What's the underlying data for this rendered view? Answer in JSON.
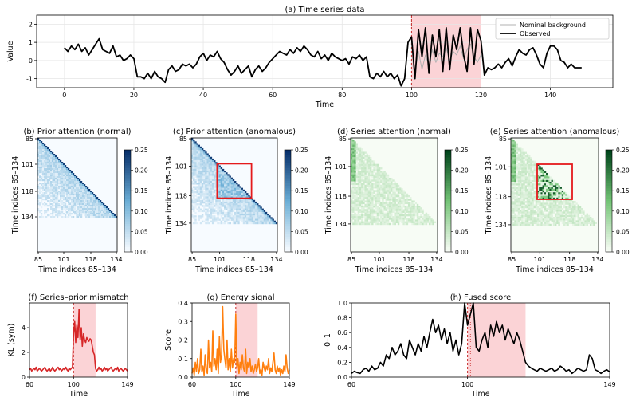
{
  "chart_data": [
    {
      "id": "a",
      "type": "line",
      "title": "(a) Time series data",
      "xlabel": "Time",
      "ylabel": "Value",
      "xlim": [
        -8,
        158
      ],
      "ylim": [
        -1.5,
        2.5
      ],
      "xticks": [
        0,
        20,
        40,
        60,
        80,
        100,
        120,
        140
      ],
      "yticks": [
        -1,
        0,
        1,
        2
      ],
      "grid": true,
      "legend": "top-right",
      "shaded_region": [
        100,
        120
      ],
      "vline": 100,
      "series": [
        {
          "name": "Nominal background",
          "color": "#b0b0b0",
          "x_start": 100,
          "values": [
            1.0,
            -0.6,
            0.5,
            -0.5,
            0.3,
            -0.3,
            0.6,
            -0.1,
            0.4,
            0.2,
            0.7,
            0.0,
            0.5,
            0.3,
            0.8,
            0.1,
            0.6,
            0.9,
            0.2,
            -0.1,
            0.3
          ]
        },
        {
          "name": "Observed",
          "color": "#000000",
          "x_start": 0,
          "values": [
            0.7,
            0.5,
            0.8,
            0.6,
            0.9,
            0.5,
            0.7,
            0.3,
            0.6,
            0.9,
            1.2,
            0.6,
            0.5,
            0.4,
            0.8,
            0.2,
            0.3,
            0.0,
            0.1,
            0.3,
            0.1,
            -0.9,
            -0.9,
            -1.0,
            -0.7,
            -1.0,
            -0.6,
            -0.9,
            -1.0,
            -1.2,
            -0.5,
            -0.3,
            -0.6,
            -0.5,
            -0.2,
            -0.3,
            -0.2,
            -0.4,
            -0.2,
            0.2,
            0.4,
            0.0,
            0.3,
            0.2,
            0.5,
            0.1,
            -0.1,
            -0.5,
            -0.8,
            -0.6,
            -0.3,
            -0.7,
            -0.5,
            -0.3,
            -0.9,
            -0.5,
            -0.3,
            -0.6,
            -0.4,
            -0.1,
            0.1,
            0.3,
            0.5,
            0.4,
            0.3,
            0.6,
            0.4,
            0.7,
            0.5,
            0.8,
            0.6,
            0.3,
            0.2,
            0.5,
            0.1,
            0.3,
            0.0,
            0.4,
            0.2,
            0.1,
            0.0,
            0.1,
            -0.2,
            0.2,
            0.1,
            0.3,
            0.0,
            0.2,
            -0.9,
            -1.0,
            -0.7,
            -0.9,
            -0.6,
            -0.9,
            -0.7,
            -1.0,
            -0.8,
            -1.4,
            -1.0,
            1.0,
            1.3,
            -1.0,
            1.7,
            0.2,
            1.8,
            -0.7,
            1.4,
            0.2,
            1.7,
            -0.6,
            1.8,
            -0.5,
            1.4,
            0.6,
            1.8,
            0.3,
            -0.6,
            1.8,
            -0.2,
            1.7,
            1.1,
            -0.8,
            -0.4,
            -0.5,
            -0.4,
            -0.2,
            -0.4,
            -0.1,
            0.1,
            -0.3,
            0.2,
            0.6,
            0.4,
            0.3,
            0.6,
            0.7,
            0.3,
            -0.2,
            -0.4,
            0.4,
            0.8,
            0.8,
            0.6,
            0.0,
            -0.1,
            -0.4,
            -0.2,
            -0.4,
            -0.4,
            -0.4
          ]
        }
      ]
    },
    {
      "id": "b",
      "type": "heatmap",
      "title": "(b) Prior attention (normal)",
      "xlabel": "Time indices 85–134",
      "ylabel": "Time indices 85–134",
      "ticklabels": [
        "85",
        "101",
        "118",
        "134"
      ],
      "cmap": "blues",
      "colorbar": {
        "ticks": [
          "0.00",
          "0.05",
          "0.10",
          "0.15",
          "0.20",
          "0.25"
        ],
        "range": [
          0,
          0.25
        ]
      }
    },
    {
      "id": "c",
      "type": "heatmap",
      "title": "(c) Prior attention (anomalous)",
      "xlabel": "Time indices 85–134",
      "ylabel": "Time indices 85–134",
      "ticklabels": [
        "85",
        "101",
        "118",
        "134"
      ],
      "cmap": "blues",
      "highlight": [
        100,
        119
      ],
      "colorbar": {
        "ticks": [
          "0.00",
          "0.05",
          "0.10",
          "0.15",
          "0.20",
          "0.25"
        ],
        "range": [
          0,
          0.25
        ]
      }
    },
    {
      "id": "d",
      "type": "heatmap",
      "title": "(d) Series attention (normal)",
      "xlabel": "Time indices 85–134",
      "ylabel": "Time indices 85–134",
      "ticklabels": [
        "85",
        "101",
        "118",
        "134"
      ],
      "cmap": "greens",
      "colorbar": {
        "ticks": [
          "0.00",
          "0.05",
          "0.10",
          "0.15",
          "0.20",
          "0.25"
        ],
        "range": [
          0,
          0.25
        ]
      }
    },
    {
      "id": "e",
      "type": "heatmap",
      "title": "(e) Series attention (anomalous)",
      "xlabel": "Time indices 85–134",
      "ylabel": "Time indices 85–134",
      "ticklabels": [
        "85",
        "101",
        "118",
        "134"
      ],
      "cmap": "greens",
      "highlight": [
        100,
        119
      ],
      "colorbar": {
        "ticks": [
          "0.00",
          "0.05",
          "0.10",
          "0.15",
          "0.20",
          "0.25"
        ],
        "range": [
          0,
          0.25
        ]
      }
    },
    {
      "id": "f",
      "type": "line",
      "title": "(f) Series–prior mismatch",
      "xlabel": "Time",
      "ylabel": "KL (sym)",
      "xlim": [
        60,
        149
      ],
      "ylim": [
        0,
        6
      ],
      "xticks": [
        60,
        100,
        149
      ],
      "yticks": [
        0,
        2,
        4
      ],
      "shaded_region": [
        100,
        120
      ],
      "vline": 100,
      "series": [
        {
          "color": "#d62728",
          "x_start": 60,
          "values": [
            0.6,
            0.7,
            0.5,
            0.6,
            0.7,
            0.6,
            0.8,
            0.5,
            0.6,
            0.7,
            0.6,
            0.5,
            0.6,
            0.7,
            0.8,
            0.6,
            0.5,
            0.6,
            0.7,
            0.5,
            0.6,
            0.8,
            0.6,
            0.5,
            0.6,
            0.7,
            0.8,
            0.6,
            0.7,
            0.5,
            0.6,
            0.7,
            0.6,
            0.8,
            0.6,
            0.5,
            0.7,
            0.6,
            0.7,
            0.8,
            3.5,
            4.5,
            2.8,
            4.2,
            3.2,
            5.5,
            3.0,
            4.0,
            2.5,
            3.5,
            3.0,
            2.8,
            3.2,
            3.0,
            2.9,
            3.1,
            3.0,
            2.5,
            2.0,
            1.8,
            0.7,
            0.5,
            0.6,
            0.8,
            0.6,
            0.7,
            0.5,
            0.6,
            0.8,
            0.6,
            0.7,
            0.5,
            0.6,
            0.7,
            0.8,
            0.6,
            0.5,
            0.6,
            0.7,
            0.6,
            0.8,
            0.5,
            0.6,
            0.7,
            0.6,
            0.5,
            0.6,
            0.7,
            0.6,
            0.5
          ]
        }
      ]
    },
    {
      "id": "g",
      "type": "line",
      "title": "(g) Energy signal",
      "xlabel": "Time",
      "ylabel": "Score",
      "xlim": [
        60,
        149
      ],
      "ylim": [
        0,
        0.4
      ],
      "xticks": [
        60,
        100,
        149
      ],
      "yticks": [
        0.0,
        0.1,
        0.2,
        0.3,
        0.4
      ],
      "shaded_region": [
        100,
        120
      ],
      "vline": 100,
      "series": [
        {
          "color": "#ff7f0e",
          "x_start": 60,
          "values": [
            0.02,
            0.05,
            0.01,
            0.08,
            0.03,
            0.1,
            0.02,
            0.04,
            0.15,
            0.03,
            0.06,
            0.01,
            0.12,
            0.04,
            0.02,
            0.2,
            0.05,
            0.08,
            0.03,
            0.25,
            0.06,
            0.1,
            0.04,
            0.15,
            0.02,
            0.22,
            0.08,
            0.12,
            0.38,
            0.15,
            0.1,
            0.05,
            0.2,
            0.04,
            0.1,
            0.03,
            0.15,
            0.05,
            0.1,
            0.08,
            0.34,
            0.05,
            0.1,
            0.02,
            0.08,
            0.04,
            0.12,
            0.05,
            0.03,
            0.15,
            0.02,
            0.08,
            0.05,
            0.1,
            0.03,
            0.06,
            0.02,
            0.04,
            0.07,
            0.03,
            0.05,
            0.1,
            0.02,
            0.04,
            0.01,
            0.08,
            0.05,
            0.03,
            0.06,
            0.04,
            0.1,
            0.02,
            0.05,
            0.03,
            0.08,
            0.13,
            0.04,
            0.02,
            0.06,
            0.03,
            0.05,
            0.01,
            0.04,
            0.02,
            0.06,
            0.03,
            0.12,
            0.05,
            0.02,
            0.04
          ]
        }
      ]
    },
    {
      "id": "h",
      "type": "line",
      "title": "(h) Fused score",
      "xlabel": "Time",
      "ylabel": "0–1",
      "xlim": [
        60,
        149
      ],
      "ylim": [
        0,
        1
      ],
      "xticks": [
        60,
        100,
        149
      ],
      "yticks": [
        0.0,
        0.2,
        0.4,
        0.6,
        0.8,
        1.0
      ],
      "shaded_region": [
        100,
        120
      ],
      "vline": 100,
      "series": [
        {
          "color": "#000000",
          "x_start": 60,
          "values": [
            0.05,
            0.08,
            0.06,
            0.05,
            0.1,
            0.12,
            0.08,
            0.15,
            0.1,
            0.12,
            0.2,
            0.15,
            0.3,
            0.25,
            0.4,
            0.3,
            0.35,
            0.45,
            0.3,
            0.25,
            0.5,
            0.4,
            0.3,
            0.45,
            0.35,
            0.55,
            0.4,
            0.6,
            0.78,
            0.6,
            0.7,
            0.5,
            0.65,
            0.45,
            0.6,
            0.35,
            0.5,
            0.3,
            0.45,
            1.0,
            0.7,
            0.85,
            1.0,
            0.4,
            0.35,
            0.5,
            0.6,
            0.4,
            0.7,
            0.55,
            0.75,
            0.6,
            0.7,
            0.5,
            0.65,
            0.55,
            0.45,
            0.6,
            0.5,
            0.35,
            0.2,
            0.15,
            0.12,
            0.1,
            0.08,
            0.12,
            0.1,
            0.08,
            0.1,
            0.12,
            0.08,
            0.1,
            0.15,
            0.12,
            0.08,
            0.1,
            0.05,
            0.08,
            0.12,
            0.1,
            0.08,
            0.1,
            0.3,
            0.25,
            0.1,
            0.08,
            0.05,
            0.08,
            0.1,
            0.07
          ]
        }
      ]
    }
  ]
}
